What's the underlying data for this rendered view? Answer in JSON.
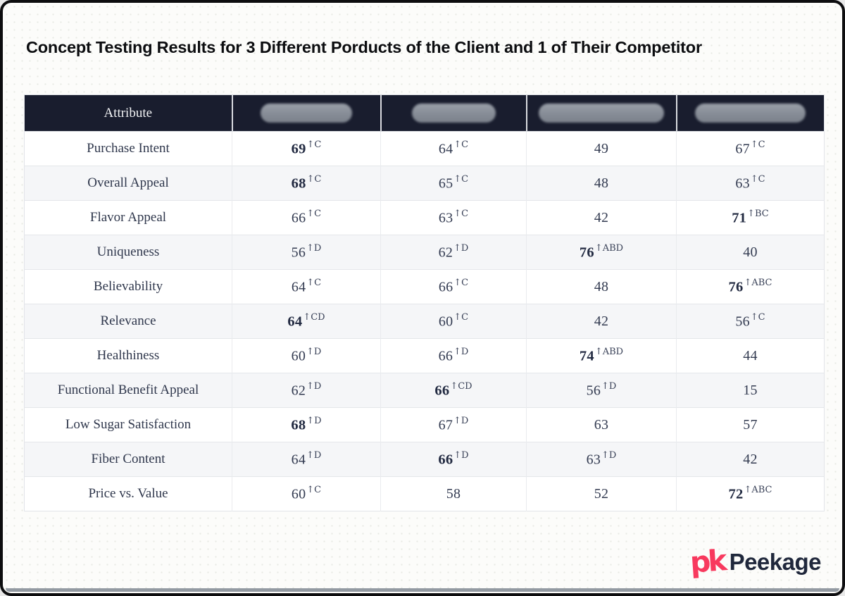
{
  "title": "Concept Testing Results for 3 Different Porducts of the Client and 1 of Their Competitor",
  "table": {
    "attribute_header": "Attribute",
    "columns": [
      {
        "name": "product-a-redacted",
        "redaction_width": 130
      },
      {
        "name": "product-b-redacted",
        "redaction_width": 119
      },
      {
        "name": "product-c-redacted",
        "redaction_width": 178
      },
      {
        "name": "product-d-redacted",
        "redaction_width": 157
      }
    ],
    "rows": [
      {
        "attribute": "Purchase Intent",
        "values": [
          {
            "v": "69",
            "sup": "↑C",
            "bold": true
          },
          {
            "v": "64",
            "sup": "↑C"
          },
          {
            "v": "49"
          },
          {
            "v": "67",
            "sup": "↑C"
          }
        ]
      },
      {
        "attribute": "Overall Appeal",
        "values": [
          {
            "v": "68",
            "sup": "↑C",
            "bold": true
          },
          {
            "v": "65",
            "sup": "↑C"
          },
          {
            "v": "48"
          },
          {
            "v": "63",
            "sup": "↑C"
          }
        ]
      },
      {
        "attribute": "Flavor Appeal",
        "values": [
          {
            "v": "66",
            "sup": "↑C"
          },
          {
            "v": "63",
            "sup": "↑C"
          },
          {
            "v": "42"
          },
          {
            "v": "71",
            "sup": "↑BC",
            "bold": true
          }
        ]
      },
      {
        "attribute": "Uniqueness",
        "values": [
          {
            "v": "56",
            "sup": "↑D"
          },
          {
            "v": "62",
            "sup": "↑D"
          },
          {
            "v": "76",
            "sup": "↑ABD",
            "bold": true
          },
          {
            "v": "40"
          }
        ]
      },
      {
        "attribute": "Believability",
        "values": [
          {
            "v": "64",
            "sup": "↑C"
          },
          {
            "v": "66",
            "sup": "↑C"
          },
          {
            "v": "48"
          },
          {
            "v": "76",
            "sup": "↑ABC",
            "bold": true
          }
        ]
      },
      {
        "attribute": "Relevance",
        "values": [
          {
            "v": "64",
            "sup": "↑CD",
            "bold": true
          },
          {
            "v": "60",
            "sup": "↑C"
          },
          {
            "v": "42"
          },
          {
            "v": "56",
            "sup": "↑C"
          }
        ]
      },
      {
        "attribute": "Healthiness",
        "values": [
          {
            "v": "60",
            "sup": "↑D"
          },
          {
            "v": "66",
            "sup": "↑D"
          },
          {
            "v": "74",
            "sup": "↑ABD",
            "bold": true
          },
          {
            "v": "44"
          }
        ]
      },
      {
        "attribute": "Functional Benefit Appeal",
        "values": [
          {
            "v": "62",
            "sup": "↑D"
          },
          {
            "v": "66",
            "sup": "↑CD",
            "bold": true
          },
          {
            "v": "56",
            "sup": "↑D"
          },
          {
            "v": "15"
          }
        ]
      },
      {
        "attribute": "Low Sugar Satisfaction",
        "values": [
          {
            "v": "68",
            "sup": "↑D",
            "bold": true
          },
          {
            "v": "67",
            "sup": "↑D"
          },
          {
            "v": "63"
          },
          {
            "v": "57"
          }
        ]
      },
      {
        "attribute": "Fiber Content",
        "values": [
          {
            "v": "64",
            "sup": "↑D"
          },
          {
            "v": "66",
            "sup": "↑D",
            "bold": true
          },
          {
            "v": "63",
            "sup": "↑D"
          },
          {
            "v": "42"
          }
        ]
      },
      {
        "attribute": "Price vs. Value",
        "values": [
          {
            "v": "60",
            "sup": "↑C"
          },
          {
            "v": "58"
          },
          {
            "v": "52"
          },
          {
            "v": "72",
            "sup": "↑ABC",
            "bold": true
          }
        ]
      }
    ]
  },
  "logo": {
    "icon_text": "pk",
    "brand": "Peekage",
    "accent_color": "#f8395e",
    "brand_color": "#20283c"
  }
}
